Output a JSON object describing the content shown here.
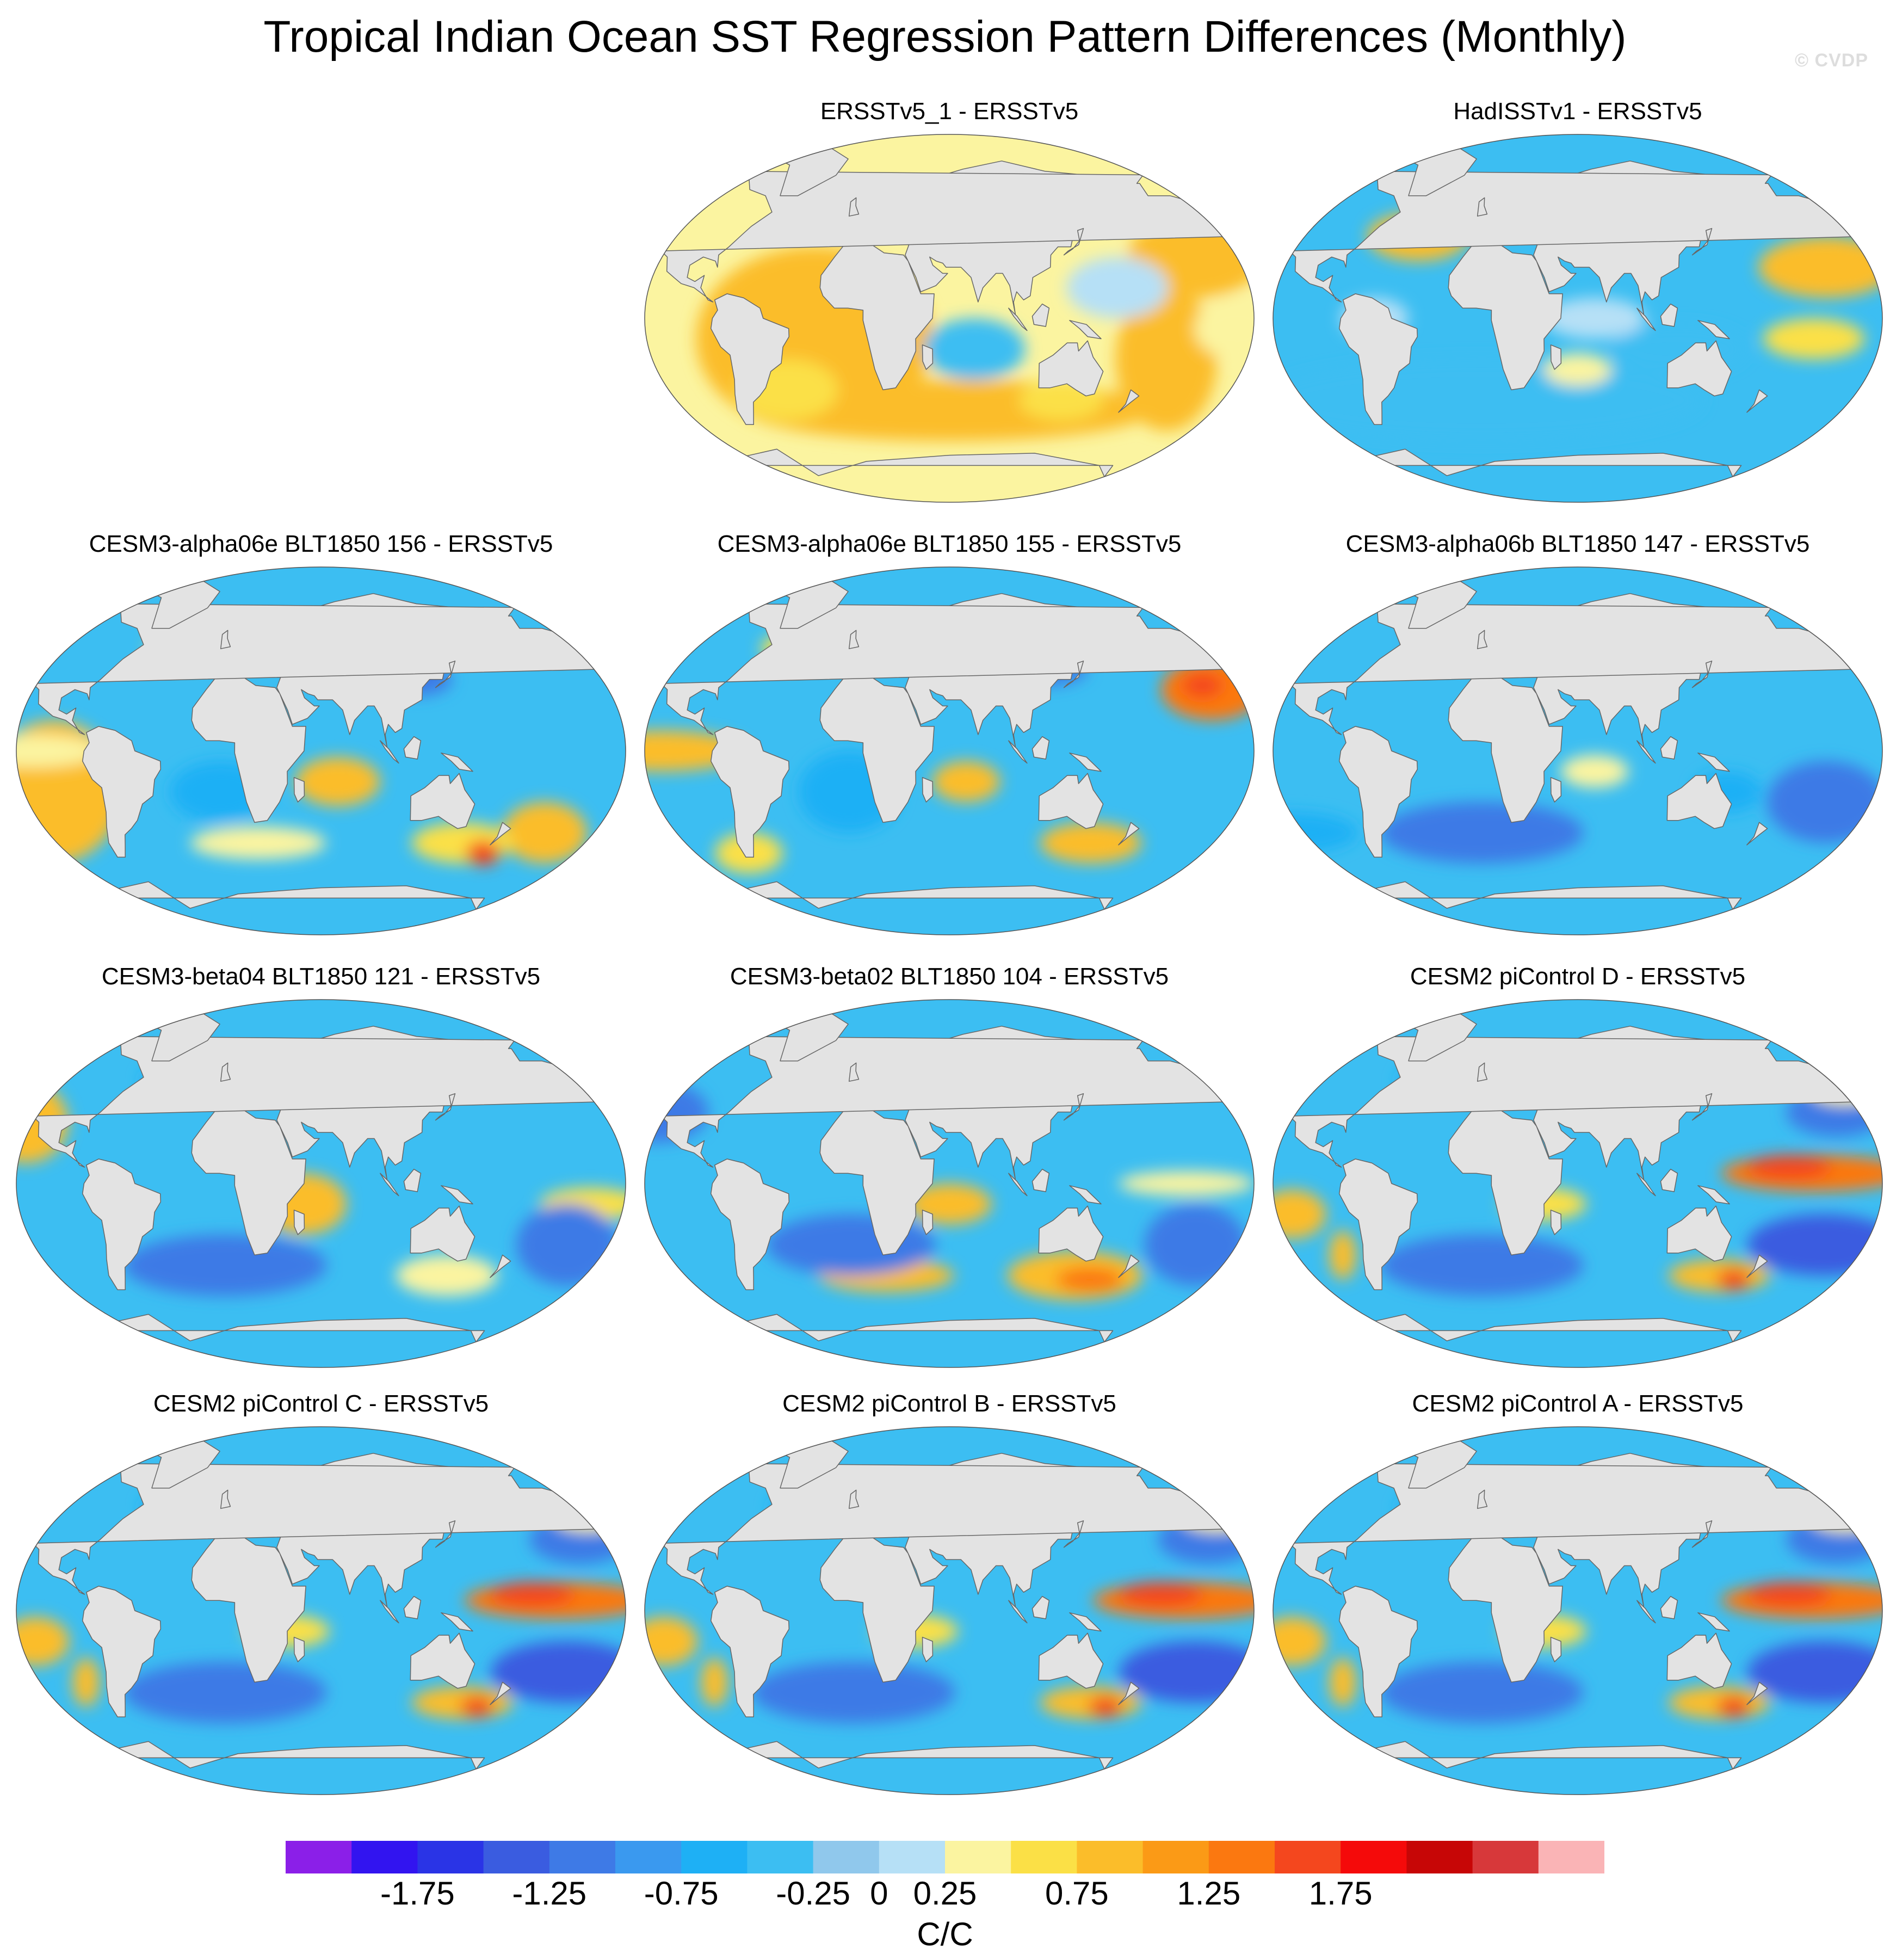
{
  "figure": {
    "title": "Tropical Indian Ocean SST Regression Pattern Differences (Monthly)",
    "watermark": "© CVDP"
  },
  "chart_data": {
    "type": "heatmap",
    "projection": "Robinson / Winkel-type global map panels",
    "panel_layout": "4 rows x 3 columns, top-left empty",
    "panels": [
      {
        "title": "ERSSTv5_1 - ERSSTv5",
        "pattern": "weakpos",
        "row": 1,
        "col": 2
      },
      {
        "title": "HadISSTv1 - ERSSTv5",
        "pattern": "mixed",
        "row": 1,
        "col": 3
      },
      {
        "title": "CESM3-alpha06e BLT1850 156 - ERSSTv5",
        "pattern": "alpha156",
        "row": 2,
        "col": 1
      },
      {
        "title": "CESM3-alpha06e BLT1850 155 - ERSSTv5",
        "pattern": "alpha155",
        "row": 2,
        "col": 2
      },
      {
        "title": "CESM3-alpha06b BLT1850 147 - ERSSTv5",
        "pattern": "neg",
        "row": 2,
        "col": 3
      },
      {
        "title": "CESM3-beta04 BLT1850 121 - ERSSTv5",
        "pattern": "beta121",
        "row": 3,
        "col": 1
      },
      {
        "title": "CESM3-beta02 BLT1850 104 - ERSSTv5",
        "pattern": "beta104",
        "row": 3,
        "col": 2
      },
      {
        "title": "CESM2 piControl D - ERSSTv5",
        "pattern": "cesm2",
        "row": 3,
        "col": 3
      },
      {
        "title": "CESM2 piControl C - ERSSTv5",
        "pattern": "cesm2",
        "row": 4,
        "col": 1
      },
      {
        "title": "CESM2 piControl B - ERSSTv5",
        "pattern": "cesm2",
        "row": 4,
        "col": 2
      },
      {
        "title": "CESM2 piControl A - ERSSTv5",
        "pattern": "cesm2",
        "row": 4,
        "col": 3
      }
    ],
    "colorbar": {
      "units": "C/C",
      "levels": [
        -2.0,
        -1.75,
        -1.5,
        -1.25,
        -1.0,
        -0.75,
        -0.5,
        -0.25,
        0,
        0.25,
        0.5,
        0.75,
        1.0,
        1.25,
        1.5,
        1.75,
        2.0
      ],
      "tick_labels": [
        "-1.75",
        "-1.25",
        "-0.75",
        "-0.25",
        "0",
        "0.25",
        "0.75",
        "1.25",
        "1.75"
      ],
      "tick_values": [
        -1.75,
        -1.25,
        -0.75,
        -0.25,
        0,
        0.25,
        0.75,
        1.25,
        1.75
      ],
      "colors": [
        "#8b1fe8",
        "#3214f0",
        "#2a34e6",
        "#3a5ce0",
        "#3e7ae6",
        "#3a99ef",
        "#1eb0f5",
        "#3cbef2",
        "#90c8ec",
        "#b6e0f6",
        "#fbf4a0",
        "#fbe046",
        "#fbbd2a",
        "#fb9a16",
        "#fb7810",
        "#f4471e",
        "#f50a0a",
        "#c70606",
        "#d7383a",
        "#fab4b6"
      ]
    },
    "land_color": "#e3e3e3",
    "coast_color": "#666666"
  }
}
